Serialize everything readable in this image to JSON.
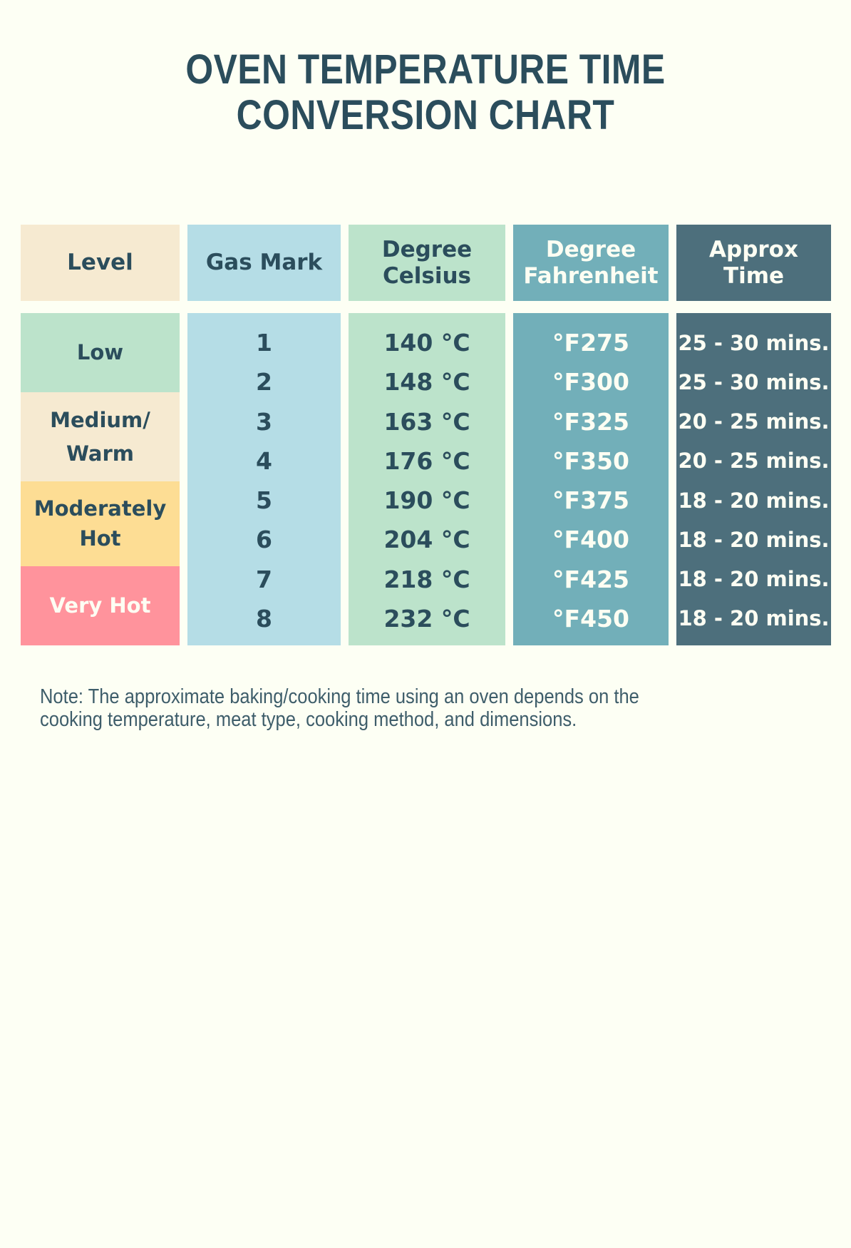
{
  "title": {
    "line1": "OVEN TEMPERATURE TIME",
    "line2": "CONVERSION CHART"
  },
  "table": {
    "headers": {
      "level": {
        "line1": "Level"
      },
      "gas_mark": {
        "line1": "Gas Mark"
      },
      "celsius": {
        "line1": "Degree",
        "line2": "Celsius"
      },
      "fahrenheit": {
        "line1": "Degree",
        "line2": "Fahrenheit"
      },
      "approx_time": {
        "line1": "Approx",
        "line2": "Time"
      }
    },
    "levels": [
      {
        "line1": "Low"
      },
      {
        "line1": "Medium/",
        "line2": "Warm"
      },
      {
        "line1": "Moderately",
        "line2": "Hot"
      },
      {
        "line1": "Very Hot"
      }
    ],
    "gas_marks": [
      "1",
      "2",
      "3",
      "4",
      "5",
      "6",
      "7",
      "8"
    ],
    "celsius_values": [
      "140 °C",
      "148 °C",
      "163 °C",
      "176 °C",
      "190 °C",
      "204 °C",
      "218 °C",
      "232 °C"
    ],
    "fahrenheit_values": [
      "°F275",
      "°F300",
      "°F325",
      "°F350",
      "°F375",
      "°F400",
      "°F425",
      "°F450"
    ],
    "time_values": [
      "25 - 30 mins.",
      "25 - 30 mins.",
      "20 - 25 mins.",
      "20 - 25 mins.",
      "18 - 20 mins.",
      "18 - 20 mins.",
      "18 - 20 mins.",
      "18 - 20 mins."
    ]
  },
  "note": {
    "line1": "Note: The approximate baking/cooking time using an oven depends on the",
    "line2": "cooking temperature, meat type, cooking method, and dimensions."
  },
  "colors": {
    "background": "#fdfff4",
    "title_text": "#2b4d5c",
    "level_header_bg": "#f6ead1",
    "gas_mark_bg": "#b5dde6",
    "celsius_bg": "#bce3cb",
    "fahrenheit_bg": "#72afb9",
    "approx_time_bg": "#4d6f7c",
    "low_bg": "#bce3cb",
    "medium_warm_bg": "#f6ead1",
    "moderately_hot_bg": "#fddd94",
    "very_hot_bg": "#ff939c",
    "dark_text": "#2b4d5c",
    "light_text": "#fdfef3"
  }
}
